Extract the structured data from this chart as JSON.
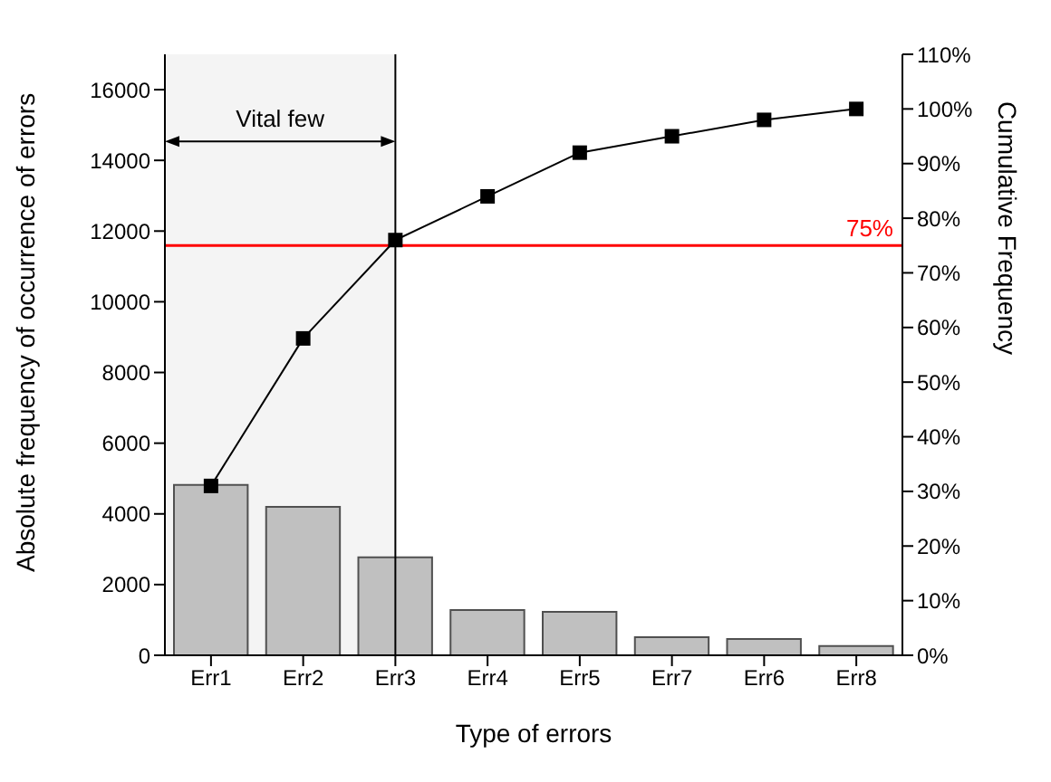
{
  "chart_data": {
    "type": "bar",
    "xlabel": "Type of errors",
    "ylabel": "Absolute frequency of occurrence of errors",
    "y2label": "Cumulative Frequency",
    "categories": [
      "Err1",
      "Err2",
      "Err3",
      "Err4",
      "Err5",
      "Err7",
      "Err6",
      "Err8"
    ],
    "series": [
      {
        "color": "#c0c0c0",
        "values": [
          4820,
          4200,
          2770,
          1280,
          1230,
          510,
          460,
          260
        ]
      },
      {
        "type": "line",
        "axis": "y2",
        "color": "#000000",
        "marker": "square",
        "values": [
          31,
          58,
          76,
          84,
          92,
          95,
          98,
          100
        ]
      }
    ],
    "ylim": [
      0,
      17000
    ],
    "yticks": [
      0,
      2000,
      4000,
      6000,
      8000,
      10000,
      12000,
      14000,
      16000
    ],
    "y2lim": [
      0,
      110
    ],
    "y2ticks": [
      {
        "value": 0,
        "label": "0%"
      },
      {
        "value": 10,
        "label": "10%"
      },
      {
        "value": 20,
        "label": "20%"
      },
      {
        "value": 30,
        "label": "30%"
      },
      {
        "value": 40,
        "label": "40%"
      },
      {
        "value": 50,
        "label": "50%"
      },
      {
        "value": 60,
        "label": "60%"
      },
      {
        "value": 70,
        "label": "70%"
      },
      {
        "value": 80,
        "label": "80%"
      },
      {
        "value": 90,
        "label": "90%"
      },
      {
        "value": 100,
        "label": "100%"
      },
      {
        "value": 110,
        "label": "110%"
      }
    ],
    "ref_lines": [
      {
        "axis": "y2",
        "value": 75,
        "label": "75%",
        "color": "#ff0000"
      },
      {
        "axis": "x",
        "value": "Err3",
        "color": "#000000"
      }
    ],
    "bands": [
      {
        "axis": "x",
        "from": "Err1",
        "to": "Err3",
        "label": "Vital few",
        "color": "#f4f4f4"
      }
    ],
    "grid": false,
    "legend": false
  }
}
